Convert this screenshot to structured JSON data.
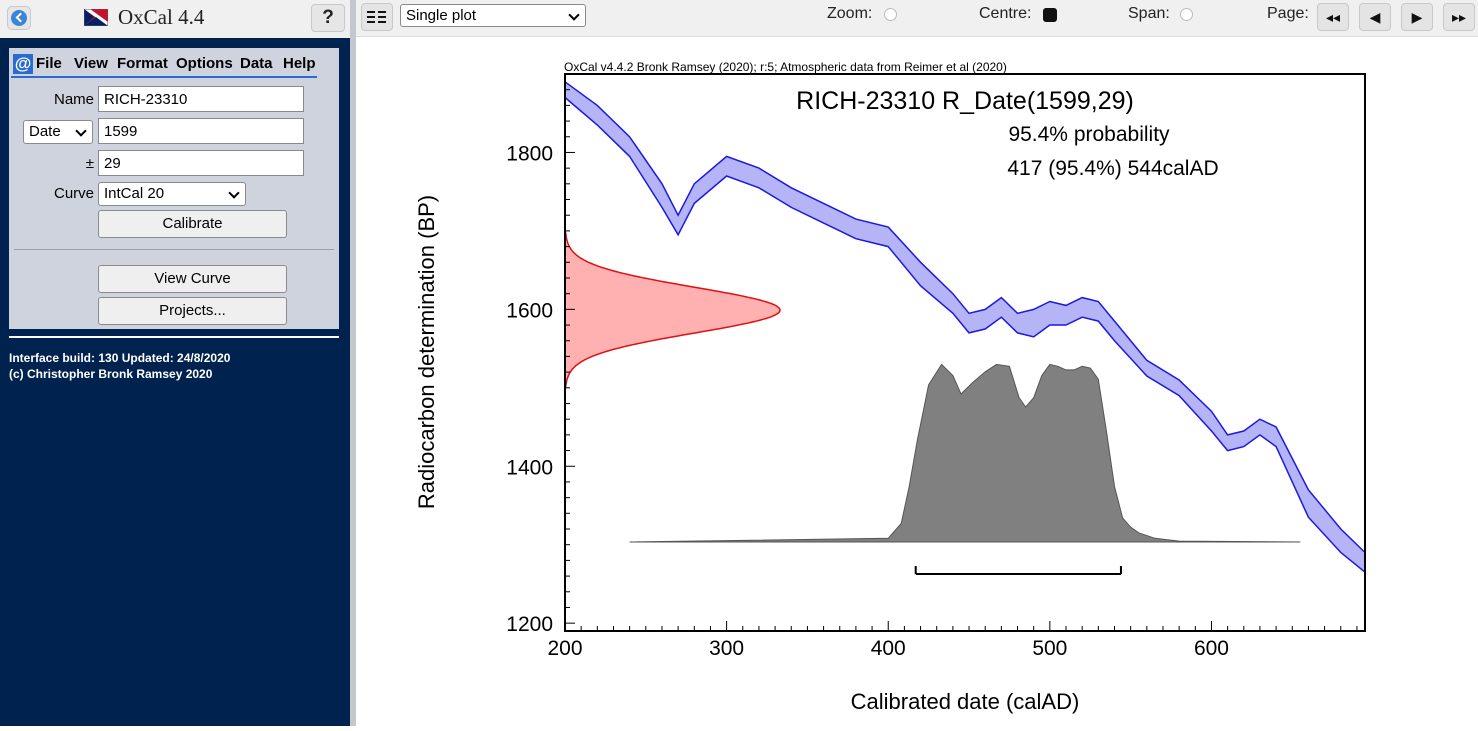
{
  "app": {
    "title": "OxCal 4.4",
    "help_label": "?"
  },
  "menu": {
    "items": [
      "File",
      "View",
      "Format",
      "Options",
      "Data",
      "Help"
    ]
  },
  "form": {
    "name_label": "Name",
    "name_value": "RICH-23310",
    "type_select": "Date",
    "date_value": "1599",
    "pm_label": "±",
    "error_value": "29",
    "curve_label": "Curve",
    "curve_select": "IntCal 20",
    "calibrate_label": "Calibrate",
    "view_curve_label": "View Curve",
    "projects_label": "Projects..."
  },
  "info": {
    "build": "Interface build: 130 Updated: 24/8/2020",
    "copyright": "(c) Christopher Bronk Ramsey 2020"
  },
  "toolbar": {
    "plot_select": "Single plot",
    "zoom_label": "Zoom:",
    "centre_label": "Centre:",
    "span_label": "Span:",
    "page_label": "Page:"
  },
  "chart_data": {
    "type": "line",
    "header": "OxCal v4.4.2 Bronk Ramsey (2020); r:5; Atmospheric data from Reimer et al (2020)",
    "title": "RICH-23310 R_Date(1599,29)",
    "subtitle": "95.4% probability",
    "range_text": "417 (95.4%) 544calAD",
    "xlabel": "Calibrated date (calAD)",
    "ylabel": "Radiocarbon determination (BP)",
    "xlim": [
      200,
      695
    ],
    "ylim": [
      1190,
      1900
    ],
    "x_ticks": [
      200,
      300,
      400,
      500,
      600
    ],
    "y_ticks": [
      1200,
      1400,
      1600,
      1800
    ],
    "colors": {
      "curve_fill": "#b4b4f6",
      "curve_line": "#1a1ae0",
      "rc_fill": "#ffb0b0",
      "rc_line": "#e01010",
      "post_fill": "#808080"
    },
    "calibration_curve": {
      "x": [
        200,
        220,
        240,
        260,
        270,
        280,
        300,
        320,
        340,
        360,
        380,
        400,
        420,
        440,
        450,
        460,
        470,
        480,
        490,
        500,
        510,
        520,
        530,
        540,
        560,
        580,
        600,
        610,
        620,
        630,
        640,
        660,
        680,
        695
      ],
      "upper": [
        1890,
        1860,
        1820,
        1760,
        1720,
        1760,
        1795,
        1780,
        1755,
        1735,
        1715,
        1705,
        1660,
        1620,
        1595,
        1600,
        1615,
        1595,
        1600,
        1610,
        1605,
        1615,
        1610,
        1585,
        1535,
        1510,
        1470,
        1440,
        1445,
        1460,
        1450,
        1370,
        1320,
        1290
      ],
      "lower": [
        1870,
        1835,
        1795,
        1730,
        1695,
        1735,
        1770,
        1755,
        1730,
        1710,
        1690,
        1680,
        1630,
        1595,
        1570,
        1575,
        1590,
        1570,
        1565,
        1580,
        1580,
        1590,
        1585,
        1560,
        1515,
        1490,
        1445,
        1420,
        1425,
        1440,
        1425,
        1335,
        1290,
        1265
      ]
    },
    "radiocarbon_date": {
      "mean": 1599,
      "sigma": 29
    },
    "calibrated_distribution": {
      "x": [
        240,
        400,
        408,
        413,
        418,
        425,
        433,
        440,
        445,
        452,
        460,
        467,
        475,
        481,
        485,
        490,
        495,
        500,
        505,
        510,
        515,
        520,
        525,
        530,
        535,
        540,
        545,
        550,
        555,
        565,
        580,
        655
      ],
      "p": [
        0.0,
        0.02,
        0.1,
        0.3,
        0.55,
        0.85,
        0.96,
        0.9,
        0.8,
        0.86,
        0.92,
        0.96,
        0.95,
        0.78,
        0.73,
        0.78,
        0.9,
        0.96,
        0.95,
        0.93,
        0.93,
        0.95,
        0.94,
        0.88,
        0.6,
        0.3,
        0.13,
        0.08,
        0.05,
        0.02,
        0.005,
        0.0
      ]
    },
    "range_bar": {
      "from": 417,
      "to": 544
    }
  }
}
